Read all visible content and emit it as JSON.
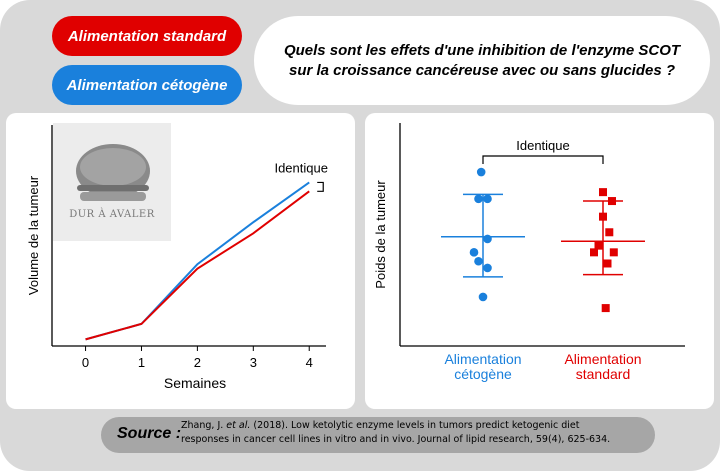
{
  "legend": {
    "standard": "Alimentation standard",
    "ketogenic": "Alimentation cétogène"
  },
  "question": {
    "line1": "Quels sont les effets d'une inhibition de l'enzyme SCOT",
    "line2": "sur la croissance cancéreuse avec ou sans glucides ?"
  },
  "logo": {
    "icon": "burger-icon",
    "text": "DUR À AVALER"
  },
  "colors": {
    "standard": "#e00000",
    "ketogenic": "#1a80dc"
  },
  "chart_data": [
    {
      "type": "line",
      "xlabel": "Semaines",
      "ylabel": "Volume de la tumeur",
      "x": [
        0,
        1,
        2,
        3,
        4
      ],
      "xlim": [
        -0.6,
        4.3
      ],
      "ylim": [
        0,
        100
      ],
      "series": [
        {
          "name": "Alimentation cétogène",
          "color": "#1a80dc",
          "values": [
            3,
            10,
            37,
            56,
            74
          ]
        },
        {
          "name": "Alimentation standard",
          "color": "#e00000",
          "values": [
            3,
            10,
            35,
            51,
            70
          ]
        }
      ],
      "annotation": "Identique"
    },
    {
      "type": "scatter",
      "ylabel": "Poids de la tumeur",
      "categories": [
        "Alimentation\ncétogène",
        "Alimentation\nstandard"
      ],
      "ylim": [
        0,
        100
      ],
      "series": [
        {
          "name": "Alimentation cétogène",
          "color": "#1a80dc",
          "marker": "circle",
          "points": [
            [
              -0.02,
              78
            ],
            [
              -0.05,
              66
            ],
            [
              0.05,
              66
            ],
            [
              0.05,
              48
            ],
            [
              -0.1,
              42
            ],
            [
              -0.05,
              38
            ],
            [
              0.05,
              35
            ],
            [
              0,
              22
            ]
          ],
          "mean": 49,
          "sd_low": 31,
          "sd_high": 68
        },
        {
          "name": "Alimentation standard",
          "color": "#e00000",
          "marker": "square",
          "points": [
            [
              0.0,
              69
            ],
            [
              0.1,
              65
            ],
            [
              0.0,
              58
            ],
            [
              0.07,
              51
            ],
            [
              -0.05,
              45
            ],
            [
              0.12,
              42
            ],
            [
              -0.1,
              42
            ],
            [
              0.05,
              37
            ],
            [
              0.03,
              17
            ]
          ],
          "mean": 47,
          "sd_low": 32,
          "sd_high": 65
        }
      ],
      "annotation": "Identique"
    }
  ],
  "source": {
    "label": "Source :",
    "citation_prefix": "Zhang, J. ",
    "citation_etal": "et al.",
    "citation_line1_rest": " (2018). Low ketolytic enzyme levels in tumors predict ketogenic diet",
    "citation_line2": "responses in cancer cell lines in vitro and in vivo. Journal of lipid research, 59(4), 625-634."
  }
}
